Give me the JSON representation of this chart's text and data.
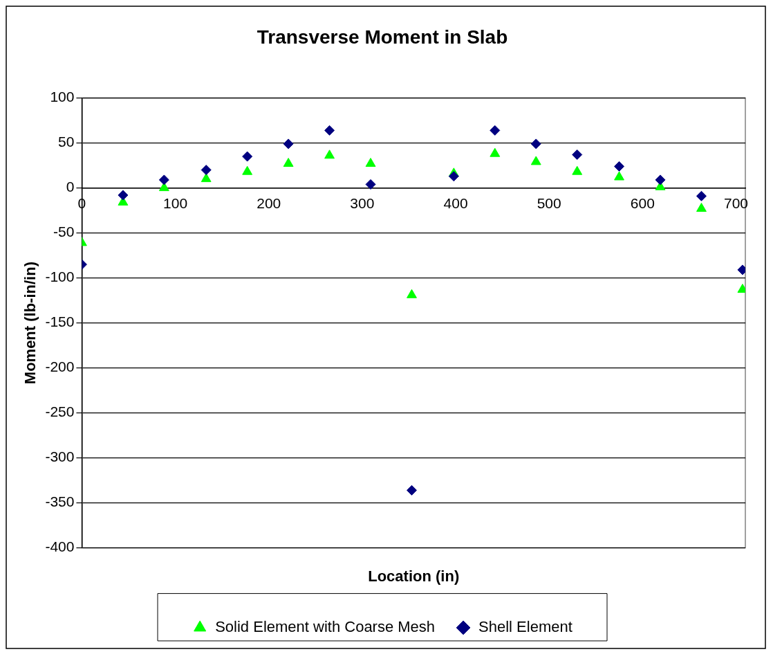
{
  "chart_data": {
    "type": "scatter",
    "title": "Transverse Moment in Slab",
    "xlabel": "Location (in)",
    "ylabel": "Moment (lb-in/in)",
    "x": [
      0,
      44,
      88,
      133,
      177,
      221,
      265,
      309,
      353,
      398,
      442,
      486,
      530,
      575,
      619,
      663,
      707
    ],
    "series": [
      {
        "name": "Solid Element with Coarse Mesh",
        "color": "#00ff00",
        "marker": "triangle",
        "values": [
          -61,
          -16,
          0,
          10,
          18,
          27,
          36,
          27,
          -119,
          16,
          38,
          29,
          18,
          12,
          1,
          -23,
          -113
        ]
      },
      {
        "name": "Shell Element",
        "color": "#000080",
        "marker": "diamond",
        "values": [
          -85,
          -8,
          9,
          20,
          35,
          49,
          64,
          4,
          -336,
          13,
          64,
          49,
          37,
          24,
          9,
          -9,
          -91
        ]
      }
    ],
    "xlim": [
      0,
      710
    ],
    "xticks": [
      0,
      100,
      200,
      300,
      400,
      500,
      600,
      700
    ],
    "ylim": [
      -400,
      100
    ],
    "yticks": [
      -400,
      -350,
      -300,
      -250,
      -200,
      -150,
      -100,
      -50,
      0,
      50,
      100
    ],
    "grid": "y",
    "legend": "bottom"
  }
}
